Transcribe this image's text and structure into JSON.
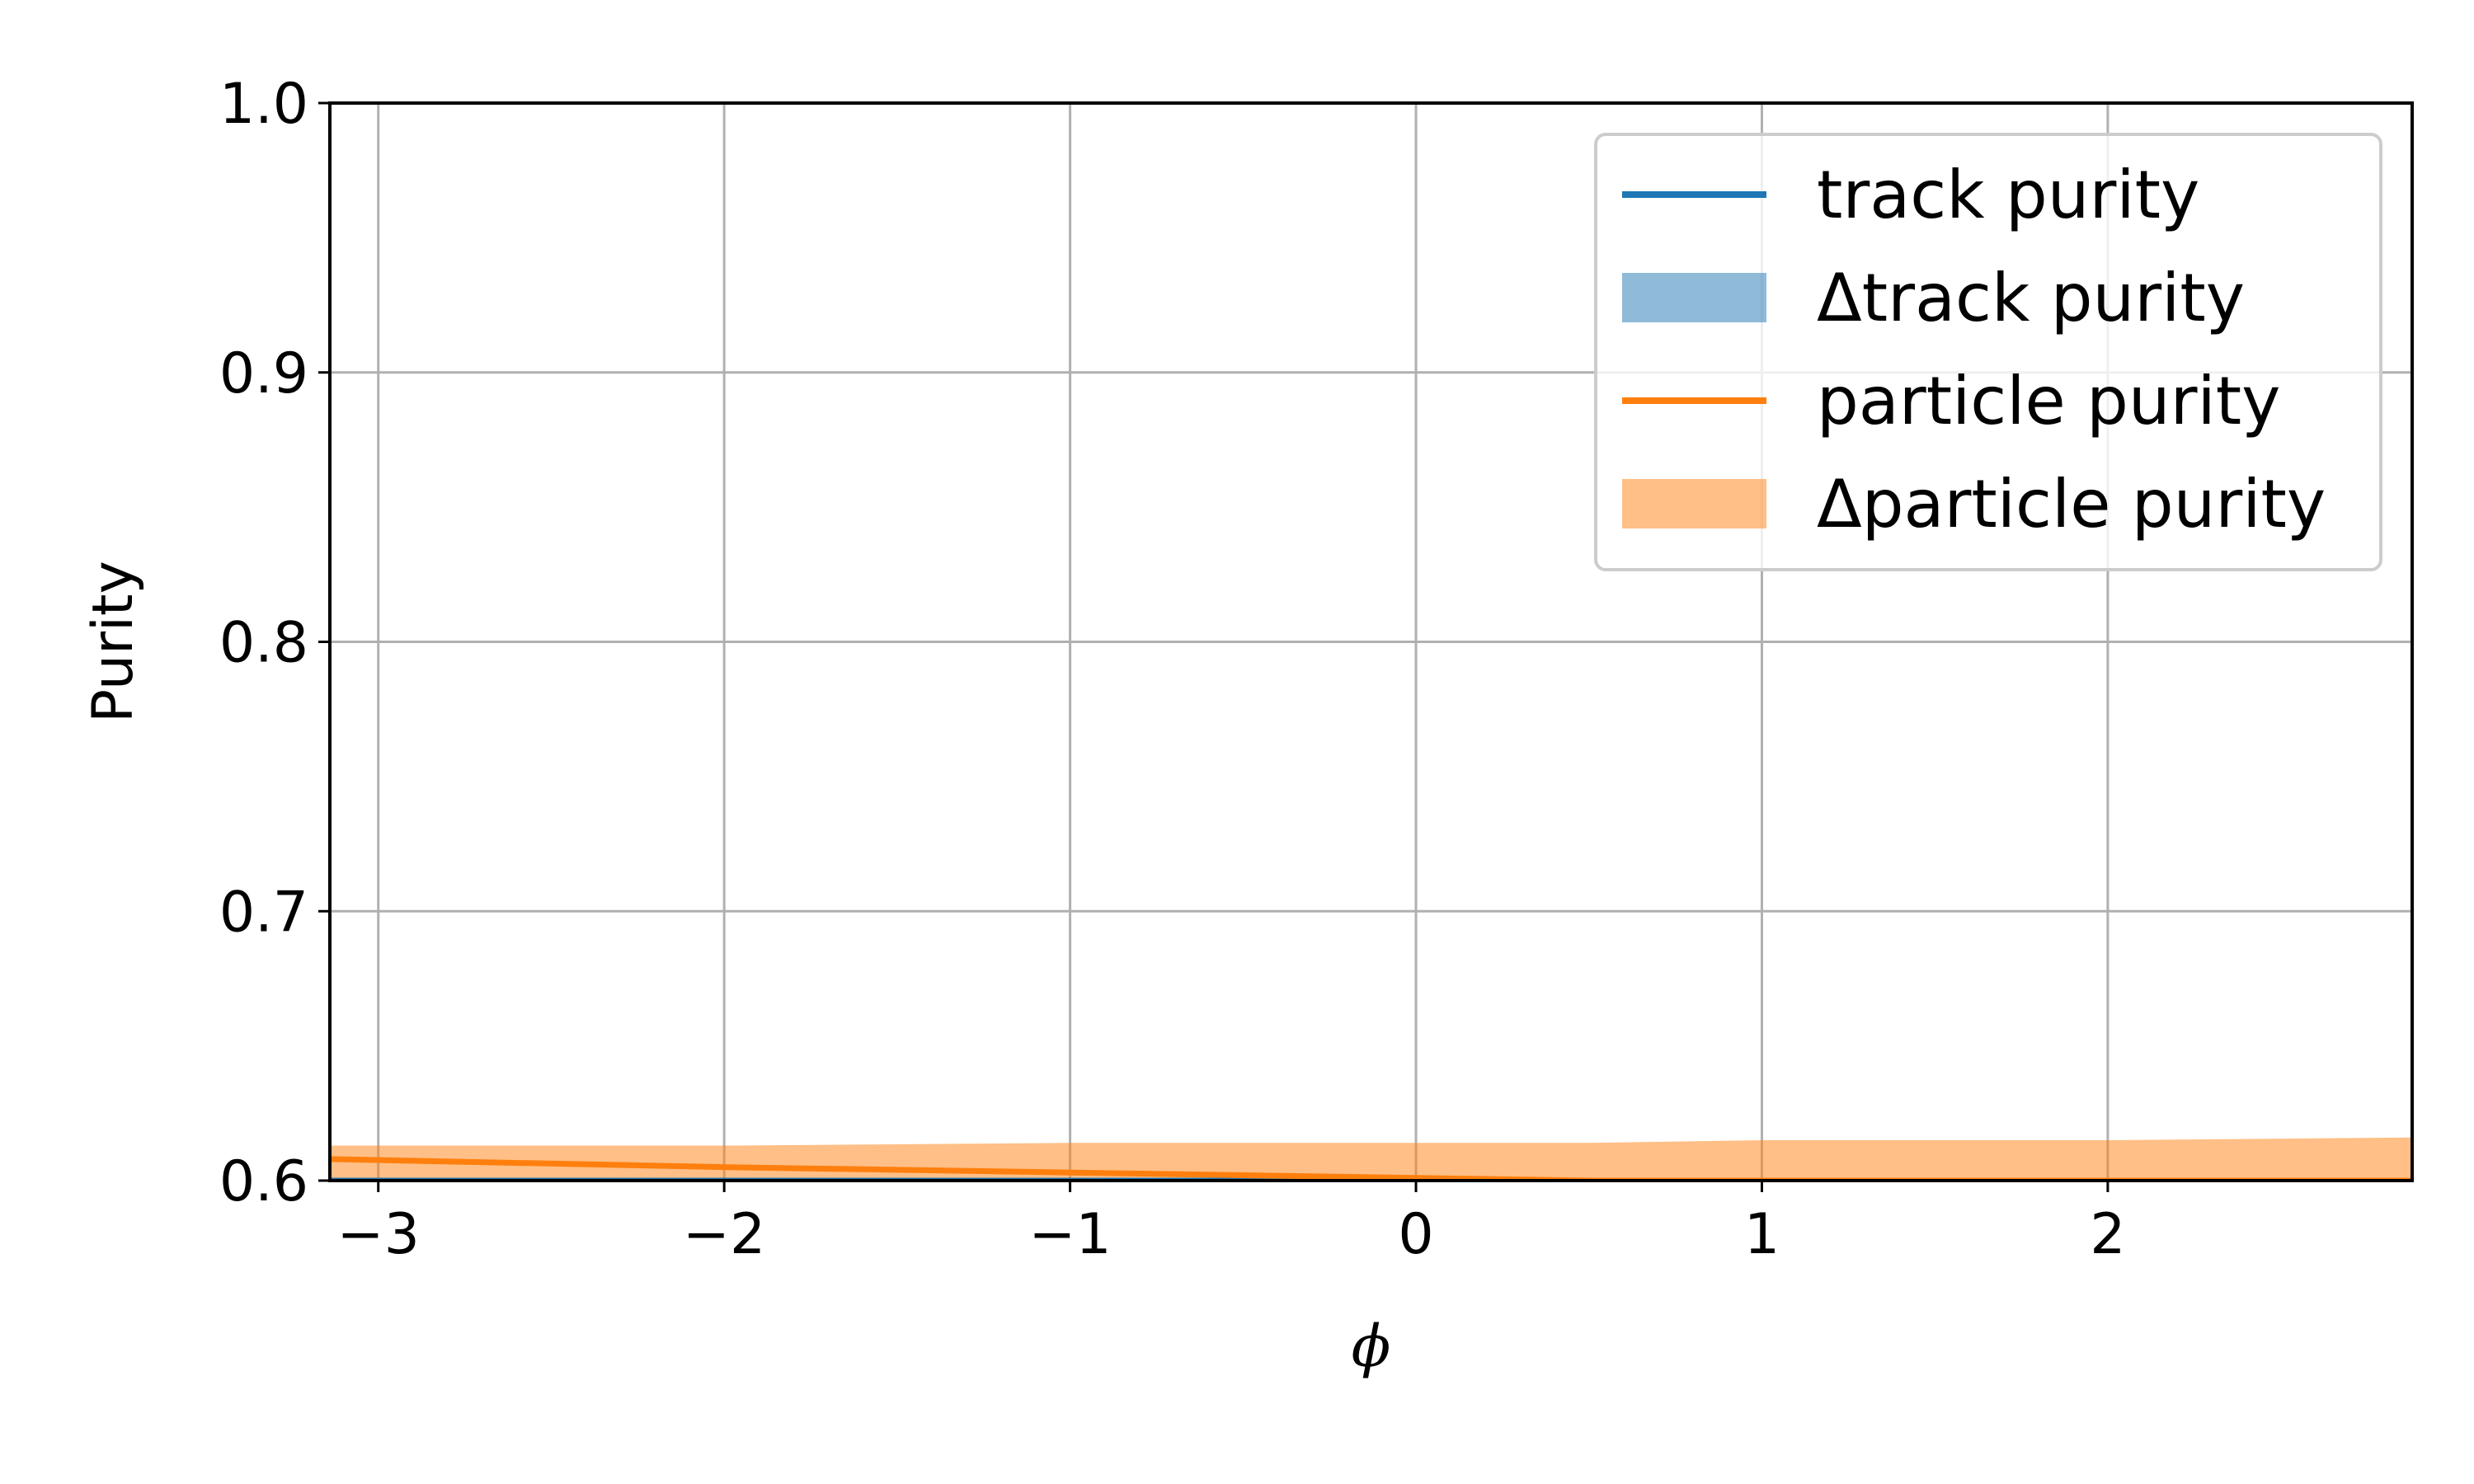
{
  "chart_data": {
    "type": "line",
    "title": "",
    "xlabel": "ϕ",
    "ylabel": "Purity",
    "xlim": [
      -3.14,
      2.88
    ],
    "ylim": [
      0.6,
      1.0
    ],
    "xticks": [
      -3,
      -2,
      -1,
      0,
      1,
      2
    ],
    "xtick_labels": [
      "−3",
      "−2",
      "−1",
      "0",
      "1",
      "2"
    ],
    "yticks": [
      0.6,
      0.7,
      0.8,
      0.9,
      1.0
    ],
    "ytick_labels": [
      "0.6",
      "0.7",
      "0.8",
      "0.9",
      "1.0"
    ],
    "grid": true,
    "legend_position": "top-right",
    "x": [
      -3.14,
      -2.0,
      -1.0,
      0.0,
      0.5,
      1.0,
      2.0,
      2.88
    ],
    "series": [
      {
        "name": "track purity",
        "kind": "line",
        "color": "#1f77b4",
        "values": [
          0.6,
          0.6,
          0.6,
          0.6,
          0.6,
          0.6,
          0.6,
          0.6
        ]
      },
      {
        "name": "Δtrack purity",
        "kind": "band",
        "color": "#1f77b4",
        "opacity": 0.5,
        "lower": [
          0.6,
          0.6,
          0.6,
          0.6,
          0.6,
          0.6,
          0.6,
          0.6
        ],
        "upper": [
          0.6,
          0.6,
          0.6,
          0.6,
          0.6,
          0.6,
          0.6,
          0.6
        ]
      },
      {
        "name": "particle purity",
        "kind": "line",
        "color": "#ff7f0e",
        "values": [
          0.608,
          0.605,
          0.603,
          0.601,
          0.6,
          0.6,
          0.6,
          0.6
        ]
      },
      {
        "name": "Δparticle purity",
        "kind": "band",
        "color": "#ff7f0e",
        "opacity": 0.5,
        "lower": [
          0.6,
          0.6,
          0.6,
          0.6,
          0.6,
          0.6,
          0.6,
          0.6
        ],
        "upper": [
          0.613,
          0.613,
          0.614,
          0.614,
          0.614,
          0.615,
          0.615,
          0.616
        ]
      }
    ]
  }
}
